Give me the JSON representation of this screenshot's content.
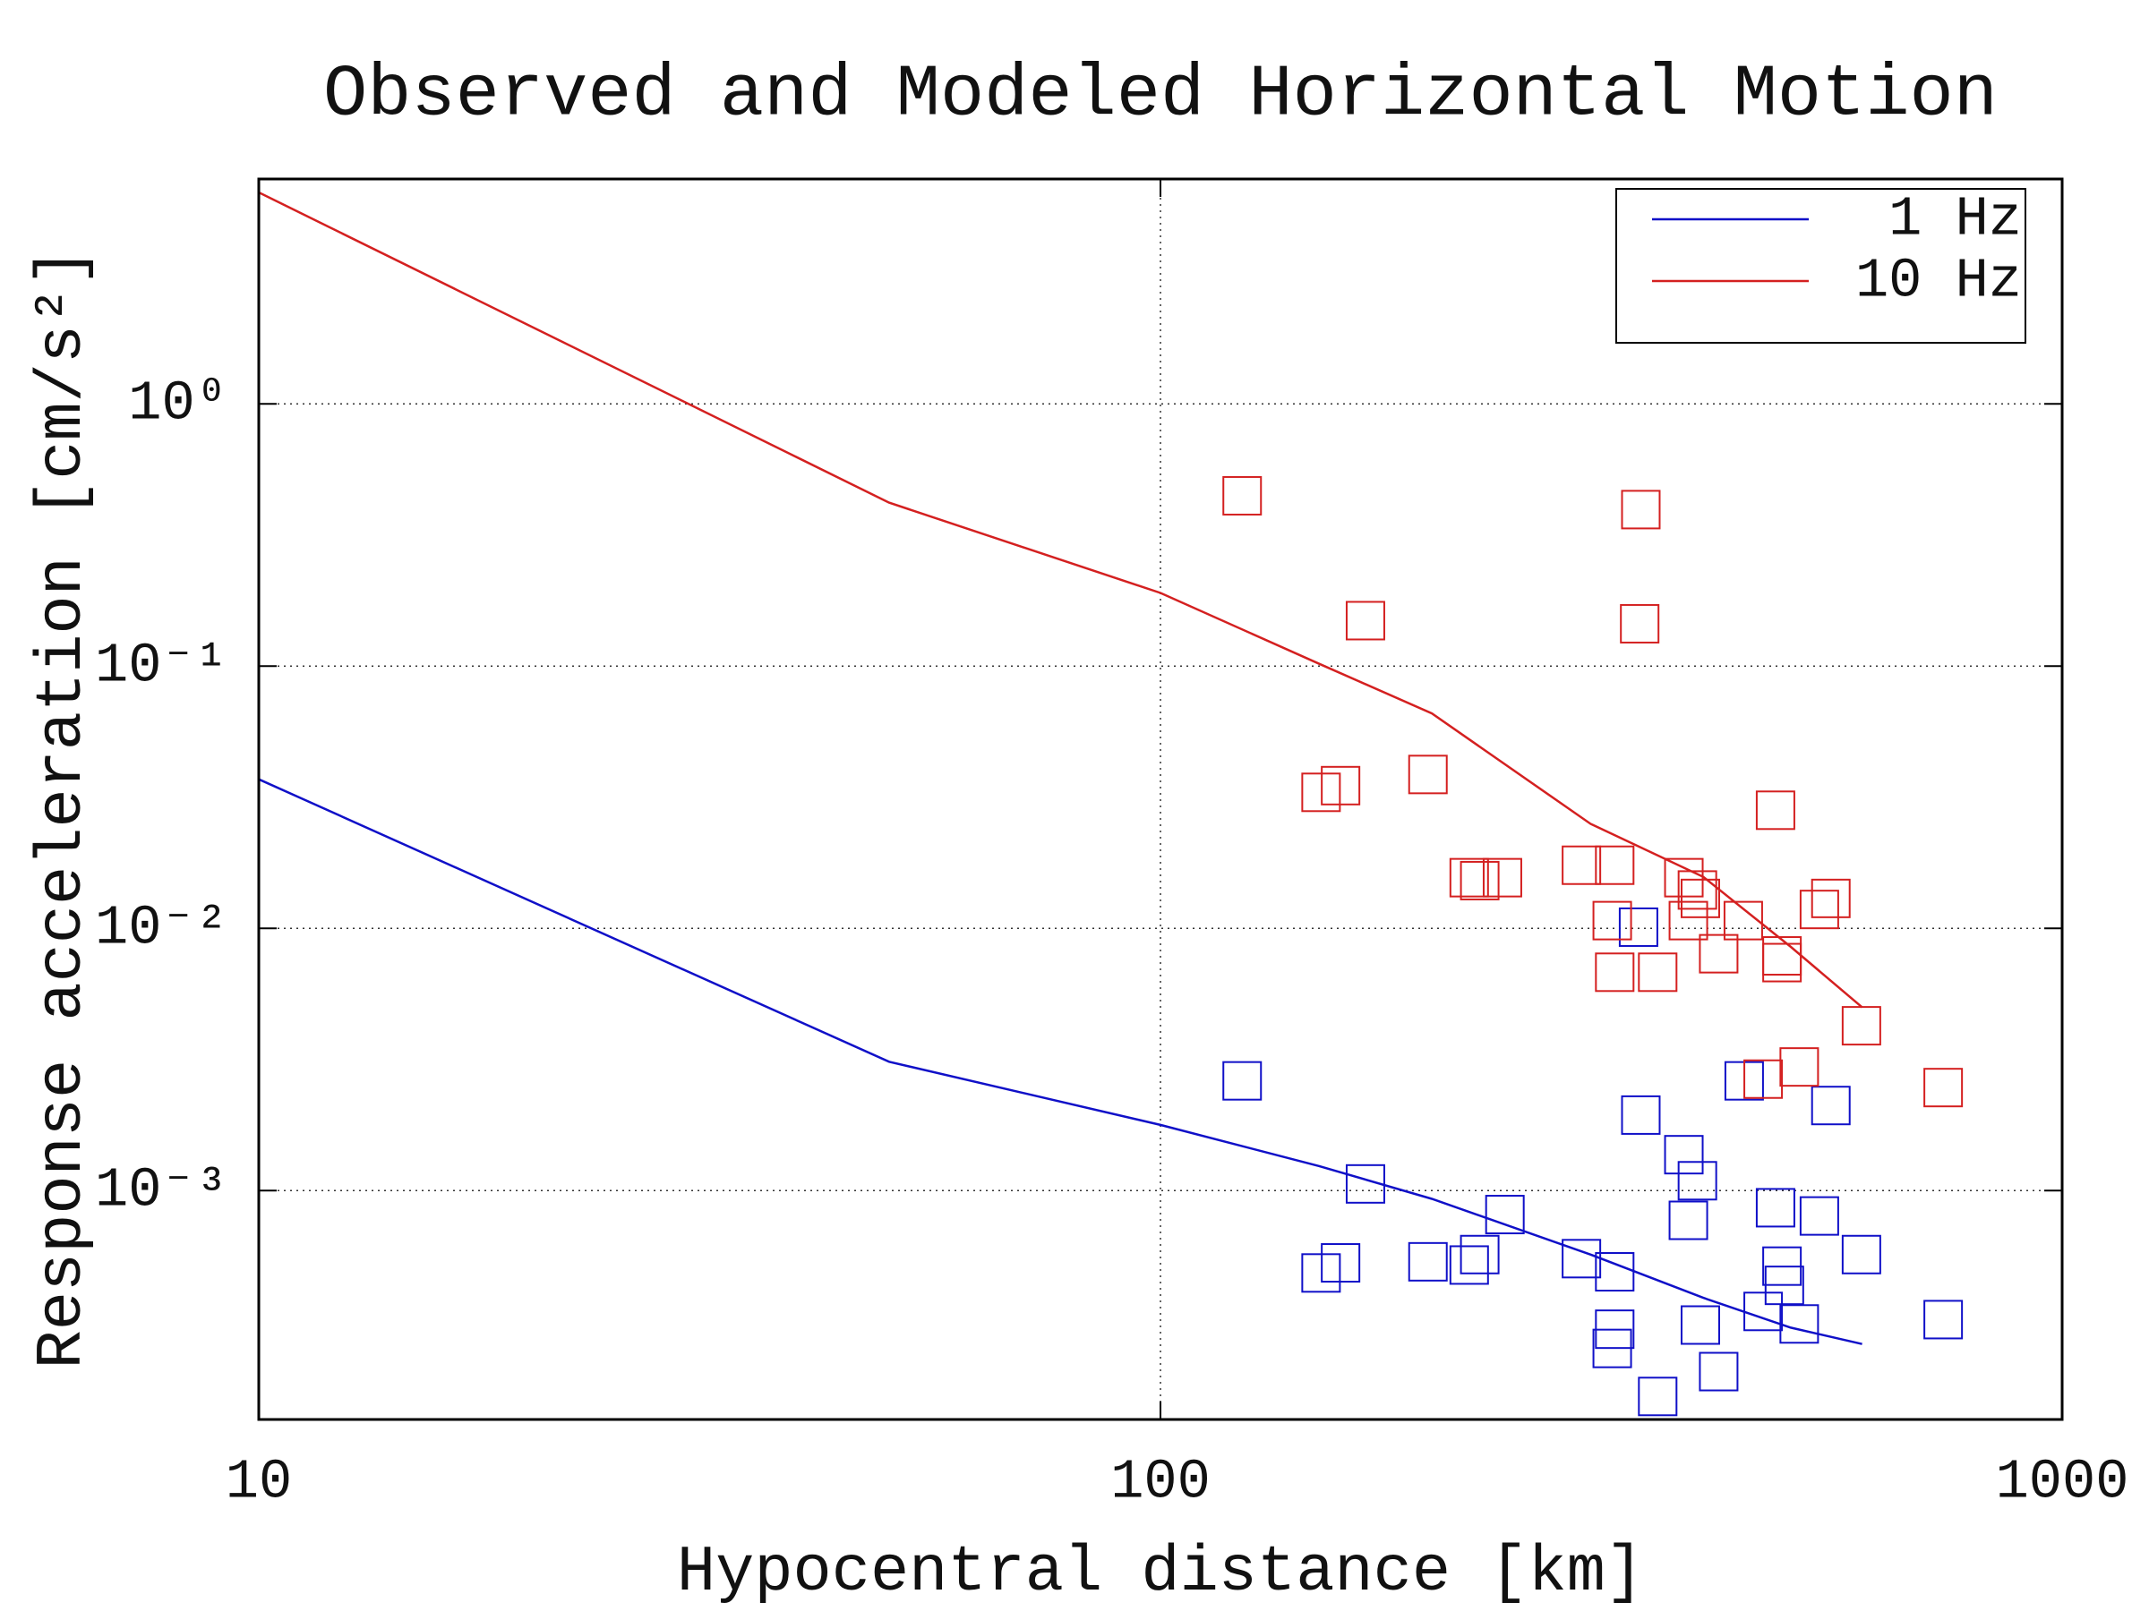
{
  "chart_data": {
    "type": "line",
    "title": "Observed and Modeled Horizontal Motion",
    "x_label": "Hypocentral distance [km]",
    "y_label": "Response acceleration [cm/s²]",
    "xlog": true,
    "ylog": true,
    "grid": true,
    "legend": "upper right",
    "xlim": [
      10,
      1000
    ],
    "xticks": [
      10,
      100,
      1000
    ],
    "ylim": [
      0.000134,
      7.2
    ],
    "yticks": [
      {
        "value": 0.001,
        "label": "10⁻³"
      },
      {
        "value": 0.01,
        "label": "10⁻²"
      },
      {
        "value": 0.1,
        "label": "10⁻¹"
      },
      {
        "value": 1,
        "label": "10⁰"
      }
    ],
    "series": [
      {
        "name": "1 Hz",
        "color": "#1010c8",
        "mode": "line",
        "x": [
          10,
          50,
          100,
          150,
          200,
          300,
          400,
          500,
          600
        ],
        "values": [
          0.037,
          0.0031,
          0.00178,
          0.00124,
          0.00093,
          0.00057,
          0.00039,
          0.0003,
          0.00026
        ]
      },
      {
        "name": "10 Hz",
        "color": "#d42020",
        "mode": "line",
        "x": [
          10,
          50,
          100,
          150,
          200,
          300,
          400,
          500,
          600
        ],
        "values": [
          6.4,
          0.42,
          0.19,
          0.102,
          0.066,
          0.025,
          0.0157,
          0.0085,
          0.005
        ]
      },
      {
        "color": "#1010c8",
        "mode": "markers",
        "x": [
          123.2,
          339,
          341,
          444,
          554,
          380.6,
          394,
          168.8,
          385,
          241,
          481,
          538,
          150.7,
          158.4,
          198,
          220,
          226,
          293,
          319,
          489,
          599,
          492,
          466,
          511,
          319,
          397,
          317,
          416,
          356,
          738
        ],
        "values": [
          0.00262,
          0.0101,
          0.00194,
          0.00262,
          0.00211,
          0.00137,
          0.00109,
          0.00106,
          0.00077,
          0.00081,
          0.00086,
          0.0008,
          0.000485,
          0.00053,
          0.000535,
          0.00052,
          0.00057,
          0.00055,
          0.00049,
          0.000515,
          0.00057,
          0.000435,
          0.000346,
          0.00031,
          0.000296,
          0.000307,
          0.00025,
          0.000204,
          0.000164,
          0.000322
        ]
      },
      {
        "color": "#d42020",
        "mode": "markers",
        "x": [
          123.2,
          341,
          168.8,
          340,
          198,
          150.7,
          158.4,
          481,
          220,
          226,
          239.5,
          293,
          319,
          380.6,
          394,
          397,
          317,
          385,
          443,
          416,
          489,
          489,
          538,
          554,
          319,
          356,
          599,
          466,
          511,
          738
        ],
        "values": [
          0.446,
          0.395,
          0.149,
          0.145,
          0.0386,
          0.033,
          0.035,
          0.0282,
          0.0156,
          0.0152,
          0.0156,
          0.0174,
          0.0174,
          0.0156,
          0.014,
          0.013,
          0.0107,
          0.0107,
          0.0107,
          0.008,
          0.00785,
          0.0074,
          0.0118,
          0.013,
          0.0068,
          0.0068,
          0.00425,
          0.00266,
          0.00296,
          0.00247
        ]
      }
    ]
  }
}
